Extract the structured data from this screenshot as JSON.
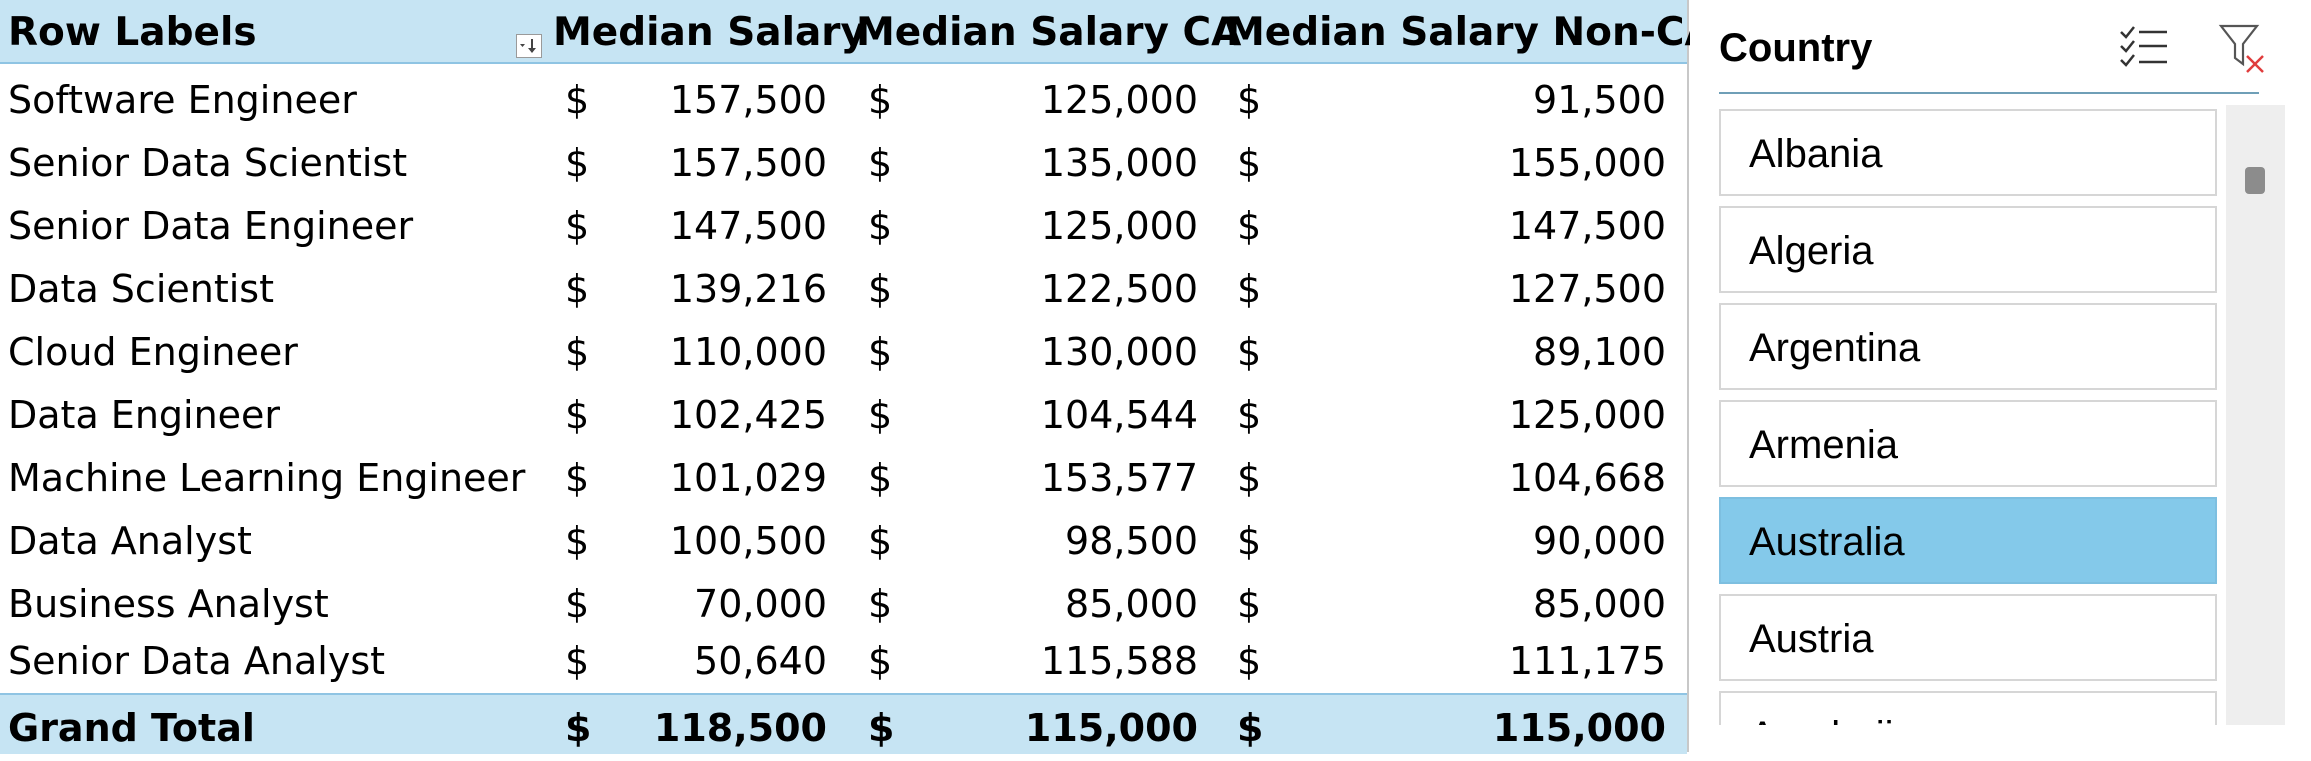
{
  "pivot": {
    "headers": {
      "row_labels": "Row Labels",
      "col1": "Median Salary",
      "col2": "Median Salary CA",
      "col3": "Median Salary Non-CA"
    },
    "currency_symbol": "$",
    "rows": [
      {
        "label": "Software Engineer",
        "v1": "157,500",
        "v2": "125,000",
        "v3": "91,500"
      },
      {
        "label": "Senior Data Scientist",
        "v1": "157,500",
        "v2": "135,000",
        "v3": "155,000"
      },
      {
        "label": "Senior Data Engineer",
        "v1": "147,500",
        "v2": "125,000",
        "v3": "147,500"
      },
      {
        "label": "Data Scientist",
        "v1": "139,216",
        "v2": "122,500",
        "v3": "127,500"
      },
      {
        "label": "Cloud Engineer",
        "v1": "110,000",
        "v2": "130,000",
        "v3": "89,100"
      },
      {
        "label": "Data Engineer",
        "v1": "102,425",
        "v2": "104,544",
        "v3": "125,000"
      },
      {
        "label": "Machine Learning Engineer",
        "v1": "101,029",
        "v2": "153,577",
        "v3": "104,668"
      },
      {
        "label": "Data Analyst",
        "v1": "100,500",
        "v2": "98,500",
        "v3": "90,000"
      },
      {
        "label": "Business Analyst",
        "v1": "70,000",
        "v2": "85,000",
        "v3": "85,000"
      },
      {
        "label": "Senior Data Analyst",
        "v1": "50,640",
        "v2": "115,588",
        "v3": "111,175"
      }
    ],
    "grand_total": {
      "label": "Grand Total",
      "v1": "118,500",
      "v2": "115,000",
      "v3": "115,000"
    }
  },
  "slicer": {
    "title": "Country",
    "icons": {
      "multi_select": "multi-select-icon",
      "clear_filter": "clear-filter-icon"
    },
    "items": [
      {
        "label": "Albania",
        "selected": false
      },
      {
        "label": "Algeria",
        "selected": false
      },
      {
        "label": "Argentina",
        "selected": false
      },
      {
        "label": "Armenia",
        "selected": false
      },
      {
        "label": "Australia",
        "selected": true
      },
      {
        "label": "Austria",
        "selected": false
      },
      {
        "label": "Azerbaijan",
        "selected": false
      }
    ]
  },
  "colors": {
    "header_fill": "#c6e4f3",
    "selected_item": "#84c9ea",
    "filter_x": "#e03c3c"
  }
}
